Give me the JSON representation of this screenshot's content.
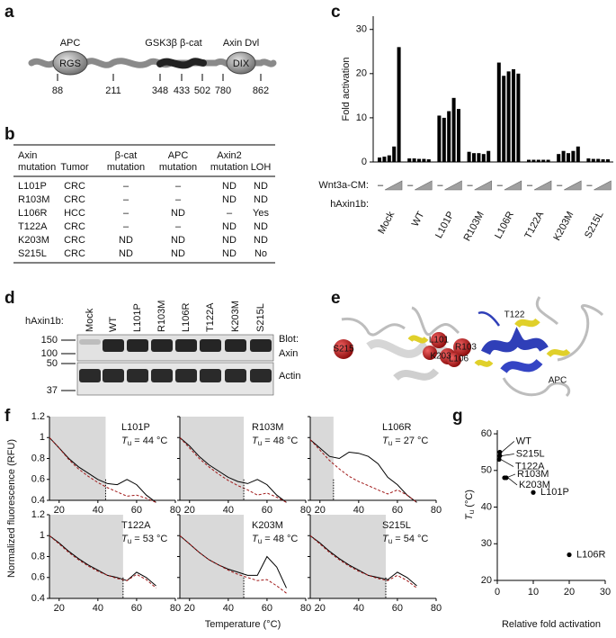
{
  "panel_labels": [
    "a",
    "b",
    "c",
    "d",
    "e",
    "f",
    "g"
  ],
  "domain_diagram": {
    "labels": [
      "APC",
      "GSK3β β-cat",
      "Axin Dvl"
    ],
    "domains": [
      "RGS",
      "DIX"
    ],
    "positions": [
      88,
      211,
      348,
      433,
      502,
      780,
      862
    ]
  },
  "table": {
    "header": [
      [
        "Axin",
        "mutation"
      ],
      [
        "Tumor"
      ],
      [
        "β-cat",
        "mutation"
      ],
      [
        "APC",
        "mutation"
      ],
      [
        "Axin2",
        "mutation"
      ],
      [
        "LOH"
      ]
    ],
    "rows": [
      [
        "L101P",
        "CRC",
        "–",
        "–",
        "ND",
        "ND"
      ],
      [
        "R103M",
        "CRC",
        "–",
        "–",
        "ND",
        "ND"
      ],
      [
        "L106R",
        "HCC",
        "–",
        "ND",
        "–",
        "Yes"
      ],
      [
        "T122A",
        "CRC",
        "–",
        "–",
        "ND",
        "ND"
      ],
      [
        "K203M",
        "CRC",
        "ND",
        "ND",
        "ND",
        "ND"
      ],
      [
        "S215L",
        "CRC",
        "ND",
        "ND",
        "ND",
        "No"
      ]
    ]
  },
  "blot": {
    "title": "hAxin1b:",
    "lanes": [
      "Mock",
      "WT",
      "L101P",
      "R103M",
      "L106R",
      "T122A",
      "K203M",
      "S215L"
    ],
    "markers": [
      150,
      100,
      50,
      37
    ],
    "labels": [
      "Blot:",
      "Axin",
      "Actin"
    ]
  },
  "structure": {
    "labels": [
      "T122",
      "S215",
      "L101",
      "K203",
      "R103",
      "L106",
      "APC"
    ]
  },
  "chart_data": [
    {
      "type": "bar",
      "ylabel": "Fold activation",
      "categories": [
        "Mock",
        "WT",
        "L101P",
        "R103M",
        "L106R",
        "T122A",
        "K203M",
        "S215L"
      ],
      "values": [
        [
          1,
          1.2,
          1.5,
          3.5,
          26
        ],
        [
          0.8,
          0.8,
          0.7,
          0.7,
          0.6
        ],
        [
          10.5,
          10,
          11.5,
          14.5,
          12
        ],
        [
          2.3,
          2,
          2,
          1.8,
          2.5
        ],
        [
          22.5,
          19.5,
          20.5,
          21,
          20
        ],
        [
          0.5,
          0.5,
          0.5,
          0.5,
          0.5
        ],
        [
          1.8,
          2.5,
          2,
          2.5,
          3.5
        ],
        [
          0.8,
          0.7,
          0.7,
          0.6,
          0.6
        ]
      ],
      "color": "#000000",
      "ylim": [
        0,
        33
      ],
      "yticks": [
        0,
        10,
        20,
        30
      ],
      "treatment_label": "Wnt3a-CM:",
      "untreated": "–",
      "construct_label": "hAxin1b:"
    },
    {
      "type": "line",
      "ylabel": "Normalized fluorescence (RFU)",
      "xlabel": "Temperature (°C)",
      "tu_symbol": "T",
      "tu_sub": "u",
      "x": [
        15,
        20,
        25,
        30,
        35,
        40,
        45,
        50,
        55,
        60,
        65,
        70
      ],
      "xlim": [
        15,
        80
      ],
      "xticks": [
        20,
        40,
        60,
        80
      ],
      "ylim": [
        0.4,
        1.2
      ],
      "yticks": [
        0.4,
        0.6,
        0.8,
        1.0,
        1.2
      ],
      "colors": [
        "#000000",
        "#a01818"
      ],
      "panels": [
        {
          "label": "L101P",
          "tu": 44,
          "tu_label": " = 44 °C",
          "series": [
            {
              "values": [
                1.0,
                0.9,
                0.8,
                0.72,
                0.66,
                0.6,
                0.56,
                0.55,
                0.6,
                0.55,
                0.45,
                0.38
              ]
            },
            {
              "values": [
                1.0,
                0.9,
                0.79,
                0.7,
                0.63,
                0.57,
                0.52,
                0.48,
                0.44,
                0.45,
                0.42,
                0.38
              ]
            }
          ]
        },
        {
          "label": "R103M",
          "tu": 48,
          "tu_label": " = 48 °C",
          "series": [
            {
              "values": [
                1.0,
                0.92,
                0.82,
                0.74,
                0.68,
                0.62,
                0.58,
                0.56,
                0.6,
                0.55,
                0.45,
                0.38
              ]
            },
            {
              "values": [
                1.0,
                0.9,
                0.8,
                0.72,
                0.65,
                0.59,
                0.54,
                0.5,
                0.45,
                0.47,
                0.43,
                0.38
              ]
            }
          ]
        },
        {
          "label": "L106R",
          "tu": 27,
          "tu_label": " = 27 °C",
          "series": [
            {
              "values": [
                0.98,
                0.9,
                0.82,
                0.8,
                0.86,
                0.85,
                0.82,
                0.75,
                0.62,
                0.55,
                0.45,
                0.38
              ]
            },
            {
              "values": [
                0.98,
                0.88,
                0.78,
                0.7,
                0.63,
                0.58,
                0.54,
                0.5,
                0.46,
                0.5,
                0.45,
                0.38
              ]
            }
          ]
        },
        {
          "label": "T122A",
          "tu": 53,
          "tu_label": " = 53 °C",
          "series": [
            {
              "values": [
                1.0,
                0.93,
                0.85,
                0.78,
                0.72,
                0.67,
                0.62,
                0.6,
                0.57,
                0.65,
                0.6,
                0.52
              ]
            },
            {
              "values": [
                1.0,
                0.92,
                0.84,
                0.77,
                0.71,
                0.66,
                0.62,
                0.59,
                0.57,
                0.63,
                0.58,
                0.5
              ]
            }
          ]
        },
        {
          "label": "K203M",
          "tu": 48,
          "tu_label": " = 48 °C",
          "series": [
            {
              "values": [
                1.0,
                0.92,
                0.84,
                0.77,
                0.72,
                0.68,
                0.65,
                0.62,
                0.62,
                0.8,
                0.7,
                0.5
              ]
            },
            {
              "values": [
                1.0,
                0.92,
                0.84,
                0.77,
                0.72,
                0.67,
                0.63,
                0.6,
                0.57,
                0.58,
                0.52,
                0.45
              ]
            }
          ]
        },
        {
          "label": "S215L",
          "tu": 54,
          "tu_label": " = 54 °C",
          "series": [
            {
              "values": [
                1.0,
                0.93,
                0.85,
                0.78,
                0.72,
                0.67,
                0.62,
                0.6,
                0.58,
                0.65,
                0.6,
                0.52
              ]
            },
            {
              "values": [
                1.0,
                0.92,
                0.84,
                0.77,
                0.71,
                0.66,
                0.62,
                0.59,
                0.57,
                0.62,
                0.57,
                0.5
              ]
            }
          ]
        }
      ]
    },
    {
      "type": "scatter",
      "xlabel": "Relative fold activation",
      "ylabel_symbol": "T",
      "ylabel_sub": "u",
      "ylabel_unit": " (°C)",
      "point_labels": [
        "WT",
        "S215L",
        "T122A",
        "R103M",
        "K203M",
        "L101P",
        "L106R"
      ],
      "x": [
        0.7,
        0.7,
        0.5,
        2,
        2.5,
        10,
        20
      ],
      "values": [
        55,
        54,
        53,
        48,
        48,
        44,
        27
      ],
      "color": "#000000",
      "xlim": [
        0,
        30
      ],
      "xticks": [
        0,
        10,
        20,
        30
      ],
      "ylim": [
        20,
        61
      ],
      "yticks": [
        20,
        30,
        40,
        50,
        60
      ]
    }
  ]
}
